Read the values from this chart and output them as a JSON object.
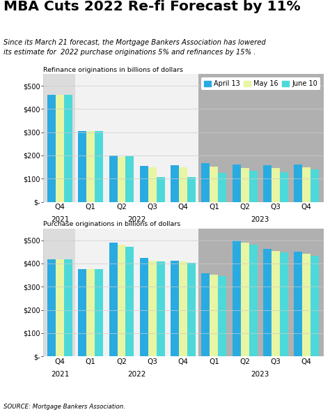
{
  "title": "MBA Cuts 2022 Re-fi Forecast by 11%",
  "subtitle": "Since its March 21 forecast, the Mortgage Bankers Association has lowered\nits estimate for  2022 purchase originations 5% and refinances by 15% .",
  "source": "SOURCE: Mortgage Bankers Association.",
  "legend_labels": [
    "April 13",
    "May 16",
    "June 10"
  ],
  "colors": [
    "#29ABE2",
    "#E8F5A3",
    "#4DD9D9"
  ],
  "refi_label": "Refinance originations in billions of dollars",
  "purchase_label": "Purchase originations in billions of dollars",
  "refi_data": {
    "april13": [
      460,
      305,
      200,
      155,
      158,
      168,
      160,
      158,
      162
    ],
    "may16": [
      460,
      305,
      195,
      150,
      148,
      152,
      145,
      145,
      148
    ],
    "june10": [
      460,
      305,
      197,
      107,
      108,
      126,
      133,
      128,
      140
    ]
  },
  "purchase_data": {
    "april13": [
      418,
      375,
      490,
      425,
      413,
      357,
      498,
      462,
      450
    ],
    "may16": [
      418,
      375,
      480,
      413,
      408,
      352,
      490,
      453,
      442
    ],
    "june10": [
      418,
      375,
      472,
      410,
      403,
      347,
      482,
      447,
      432
    ]
  },
  "ylim": [
    0,
    550
  ],
  "yticks": [
    0,
    100,
    200,
    300,
    400,
    500
  ],
  "bg_color": "#FFFFFF",
  "band_2021": "#DCDCDC",
  "band_2022": "#F2F2F2",
  "band_2023": "#B0B0B0",
  "grid_color": "#CCCCCC"
}
